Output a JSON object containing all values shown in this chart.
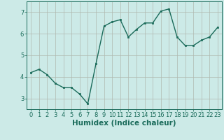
{
  "x": [
    0,
    1,
    2,
    3,
    4,
    5,
    6,
    7,
    8,
    9,
    10,
    11,
    12,
    13,
    14,
    15,
    16,
    17,
    18,
    19,
    20,
    21,
    22,
    23
  ],
  "y": [
    4.2,
    4.35,
    4.1,
    3.7,
    3.5,
    3.5,
    3.2,
    2.75,
    4.6,
    6.35,
    6.55,
    6.65,
    5.85,
    6.2,
    6.5,
    6.5,
    7.05,
    7.15,
    5.85,
    5.45,
    5.45,
    5.7,
    5.85,
    6.3
  ],
  "line_color": "#1a6b5a",
  "marker": "s",
  "marker_size": 2,
  "background_color": "#cceae7",
  "grid_color": "#b0b8b0",
  "xlabel": "Humidex (Indice chaleur)",
  "ylim": [
    2.5,
    7.5
  ],
  "xlim": [
    -0.5,
    23.5
  ],
  "yticks": [
    3,
    4,
    5,
    6,
    7
  ],
  "xticks": [
    0,
    1,
    2,
    3,
    4,
    5,
    6,
    7,
    8,
    9,
    10,
    11,
    12,
    13,
    14,
    15,
    16,
    17,
    18,
    19,
    20,
    21,
    22,
    23
  ],
  "tick_fontsize": 6,
  "label_fontsize": 7.5
}
